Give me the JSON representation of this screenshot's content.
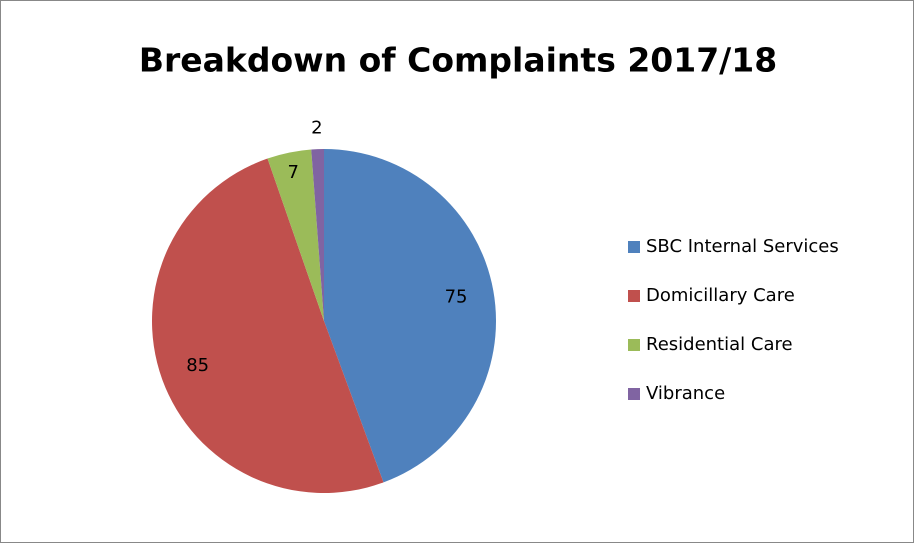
{
  "chart_data": {
    "type": "pie",
    "title": "Breakdown of Complaints 2017/18",
    "categories": [
      "SBC Internal Services",
      "Domicillary Care",
      "Residential Care",
      "Vibrance"
    ],
    "values": [
      75,
      85,
      7,
      2
    ],
    "colors": [
      "#4f81bd",
      "#c0504d",
      "#9bbb59",
      "#8064a2"
    ],
    "legend": "right"
  }
}
